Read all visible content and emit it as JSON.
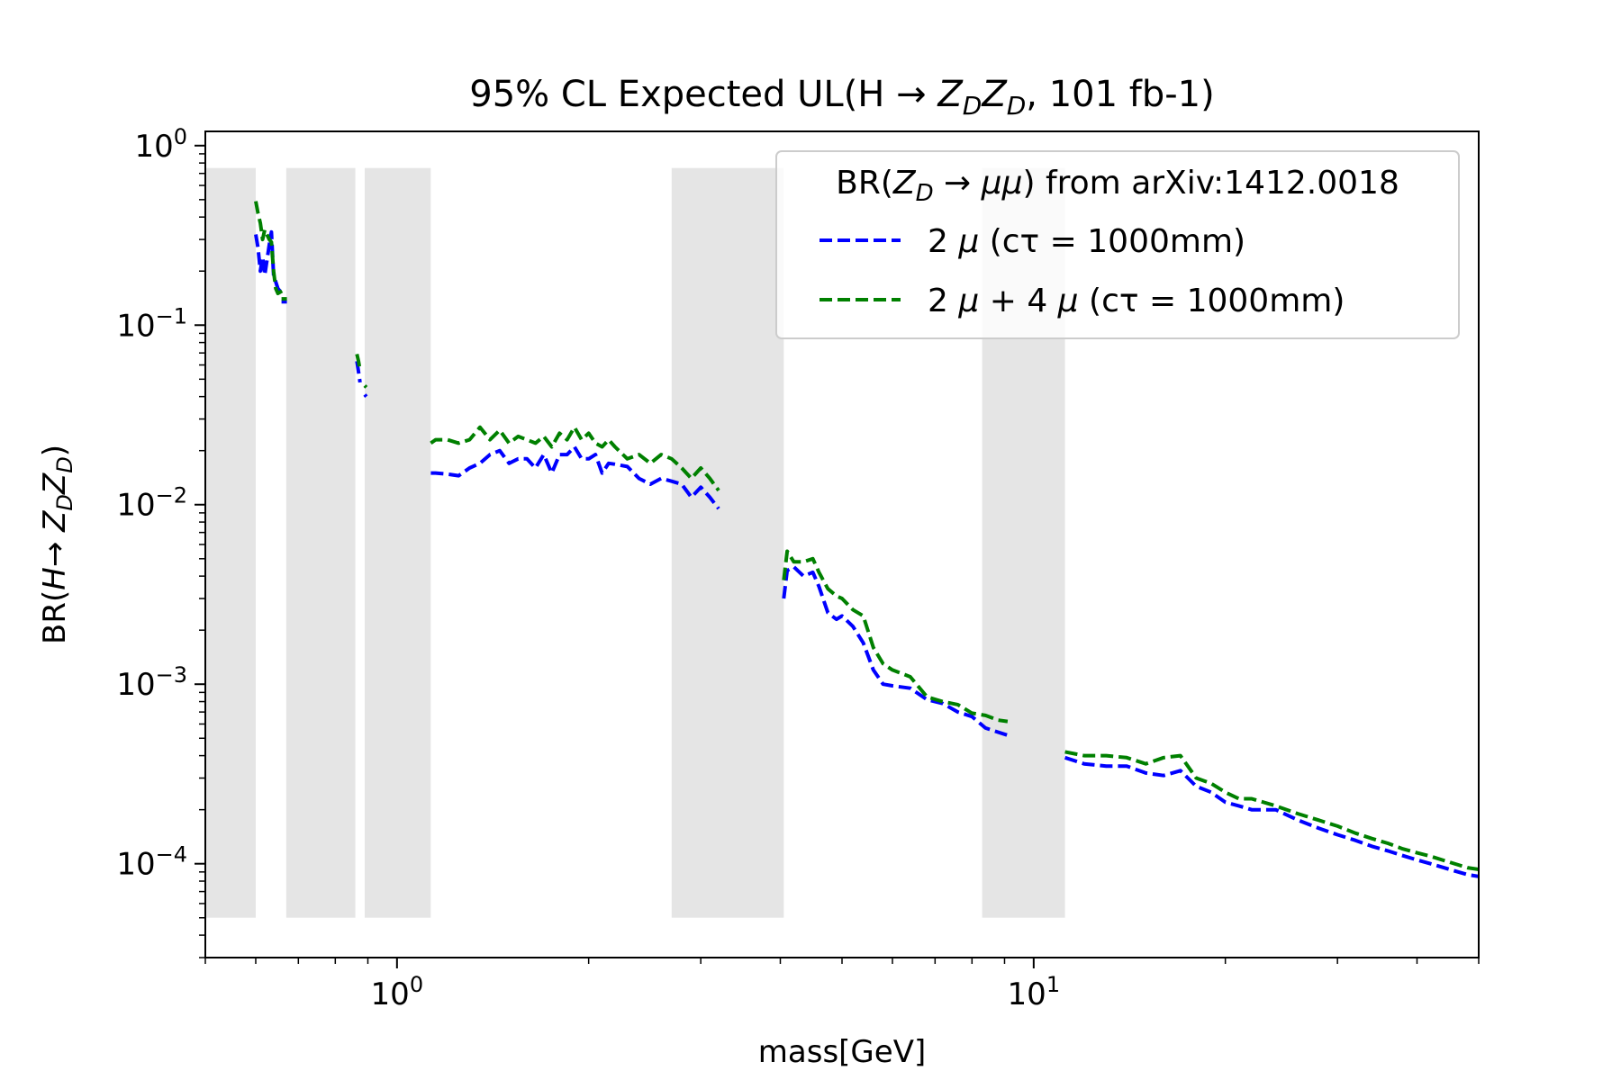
{
  "chart_data": {
    "type": "line",
    "title_prefix": "95% CL Expected UL(H ",
    "title_arrow": "→",
    "title_zd": "Z",
    "title_sub": "D",
    "title_suffix": ", 101 fb-1)",
    "xlabel": "mass[GeV]",
    "ylabel_prefix": "BR(",
    "ylabel_h": "H",
    "ylabel_arrow": "→",
    "ylabel_z": "Z",
    "ylabel_sub": "D",
    "ylabel_suffix": ")",
    "xscale": "log",
    "yscale": "log",
    "xlim": [
      0.5,
      50
    ],
    "ylim": [
      3e-05,
      1.2
    ],
    "x_ticks": [
      {
        "value": 1,
        "base": "10",
        "exp": "0"
      },
      {
        "value": 10,
        "base": "10",
        "exp": "1"
      }
    ],
    "y_ticks": [
      {
        "value": 1,
        "base": "10",
        "exp": "0"
      },
      {
        "value": 0.1,
        "base": "10",
        "exp": "−1"
      },
      {
        "value": 0.01,
        "base": "10",
        "exp": "−2"
      },
      {
        "value": 0.001,
        "base": "10",
        "exp": "−3"
      },
      {
        "value": 0.0001,
        "base": "10",
        "exp": "−4"
      }
    ],
    "grid": false,
    "legend_placement": "top-right",
    "legend": {
      "title_prefix": "BR(",
      "title_z": "Z",
      "title_sub": "D",
      "title_arrow": "→",
      "title_mumu": "μμ",
      "title_suffix": ") from arXiv:1412.0018"
    },
    "excluded_bands": [
      {
        "x": [
          0.5,
          0.6
        ],
        "y": [
          5e-05,
          0.75
        ]
      },
      {
        "x": [
          0.67,
          0.86
        ],
        "y": [
          5e-05,
          0.75
        ]
      },
      {
        "x": [
          0.89,
          1.13
        ],
        "y": [
          5e-05,
          0.75
        ]
      },
      {
        "x": [
          2.7,
          4.05
        ],
        "y": [
          5e-05,
          0.75
        ]
      },
      {
        "x": [
          8.3,
          11.2
        ],
        "y": [
          5e-05,
          0.75
        ]
      }
    ],
    "band_color": "#e5e5e5",
    "series": [
      {
        "name_prefix": "2 ",
        "name_mu": "μ",
        "name_suffix": " (cτ = 1000mm)",
        "color": "#0000ff",
        "segments": [
          [
            [
              0.6,
              0.32
            ],
            [
              0.605,
              0.27
            ],
            [
              0.61,
              0.2
            ],
            [
              0.615,
              0.24
            ],
            [
              0.62,
              0.19
            ],
            [
              0.63,
              0.28
            ],
            [
              0.635,
              0.33
            ],
            [
              0.64,
              0.19
            ],
            [
              0.65,
              0.16
            ],
            [
              0.66,
              0.15
            ]
          ],
          [
            [
              0.665,
              0.135
            ]
          ],
          [
            [
              0.865,
              0.063
            ],
            [
              0.87,
              0.055
            ],
            [
              0.875,
              0.048
            ]
          ],
          [
            [
              0.89,
              0.041
            ],
            [
              0.895,
              0.04
            ]
          ],
          [
            [
              1.13,
              0.015
            ],
            [
              1.15,
              0.015
            ],
            [
              1.2,
              0.0148
            ],
            [
              1.25,
              0.0145
            ],
            [
              1.3,
              0.016
            ],
            [
              1.35,
              0.017
            ],
            [
              1.4,
              0.019
            ],
            [
              1.45,
              0.02
            ],
            [
              1.5,
              0.017
            ],
            [
              1.55,
              0.018
            ],
            [
              1.6,
              0.018
            ],
            [
              1.65,
              0.016
            ],
            [
              1.7,
              0.019
            ],
            [
              1.75,
              0.015
            ],
            [
              1.8,
              0.019
            ],
            [
              1.85,
              0.019
            ],
            [
              1.9,
              0.021
            ],
            [
              1.95,
              0.018
            ],
            [
              2.0,
              0.018
            ],
            [
              2.05,
              0.019
            ],
            [
              2.1,
              0.015
            ],
            [
              2.15,
              0.017
            ],
            [
              2.2,
              0.0168
            ],
            [
              2.3,
              0.0163
            ],
            [
              2.4,
              0.014
            ],
            [
              2.5,
              0.013
            ],
            [
              2.6,
              0.014
            ],
            [
              2.7,
              0.0135
            ],
            [
              2.8,
              0.013
            ],
            [
              2.9,
              0.011
            ],
            [
              3.0,
              0.0125
            ],
            [
              3.1,
              0.011
            ],
            [
              3.2,
              0.0095
            ]
          ],
          [
            [
              4.05,
              0.003
            ],
            [
              4.1,
              0.0043
            ],
            [
              4.2,
              0.0045
            ],
            [
              4.35,
              0.004
            ],
            [
              4.5,
              0.0042
            ],
            [
              4.6,
              0.0035
            ],
            [
              4.75,
              0.0025
            ],
            [
              4.9,
              0.0023
            ],
            [
              5.0,
              0.0024
            ],
            [
              5.2,
              0.0021
            ],
            [
              5.4,
              0.0017
            ],
            [
              5.6,
              0.0012
            ],
            [
              5.8,
              0.001
            ],
            [
              6.0,
              0.00098
            ],
            [
              6.4,
              0.00095
            ],
            [
              6.8,
              0.00082
            ],
            [
              7.2,
              0.00078
            ],
            [
              7.6,
              0.0007
            ],
            [
              8.0,
              0.00066
            ],
            [
              8.4,
              0.00057
            ],
            [
              8.8,
              0.00054
            ],
            [
              9.1,
              0.00052
            ]
          ],
          [
            [
              11.2,
              0.00039
            ],
            [
              12,
              0.00036
            ],
            [
              13,
              0.00035
            ],
            [
              14,
              0.00035
            ],
            [
              15,
              0.00032
            ],
            [
              16,
              0.00031
            ],
            [
              17,
              0.00033
            ],
            [
              18,
              0.00027
            ],
            [
              19,
              0.00025
            ],
            [
              20,
              0.00022
            ],
            [
              21,
              0.00021
            ],
            [
              22,
              0.0002
            ],
            [
              24,
              0.0002
            ],
            [
              26,
              0.000175
            ],
            [
              28,
              0.000158
            ],
            [
              30,
              0.000145
            ],
            [
              32,
              0.000135
            ],
            [
              34,
              0.000125
            ],
            [
              36,
              0.000118
            ],
            [
              38,
              0.000111
            ],
            [
              40,
              0.000105
            ],
            [
              42,
              0.0001
            ],
            [
              45,
              9.3e-05
            ],
            [
              48,
              8.7e-05
            ],
            [
              50,
              8.5e-05
            ]
          ]
        ]
      },
      {
        "name_prefix": "2 ",
        "name_mu": "μ",
        "name_mid": " + 4 ",
        "name_mu2": "μ",
        "name_suffix": " (cτ = 1000mm)",
        "color": "#008000",
        "segments": [
          [
            [
              0.6,
              0.49
            ],
            [
              0.605,
              0.42
            ],
            [
              0.61,
              0.37
            ],
            [
              0.615,
              0.3
            ],
            [
              0.62,
              0.34
            ],
            [
              0.63,
              0.3
            ],
            [
              0.635,
              0.29
            ],
            [
              0.64,
              0.2
            ],
            [
              0.645,
              0.16
            ],
            [
              0.65,
              0.15
            ],
            [
              0.66,
              0.155
            ]
          ],
          [
            [
              0.665,
              0.14
            ]
          ],
          [
            [
              0.865,
              0.069
            ],
            [
              0.87,
              0.063
            ],
            [
              0.875,
              0.056
            ]
          ],
          [
            [
              0.89,
              0.046
            ],
            [
              0.895,
              0.045
            ]
          ],
          [
            [
              1.13,
              0.022
            ],
            [
              1.15,
              0.023
            ],
            [
              1.2,
              0.023
            ],
            [
              1.25,
              0.022
            ],
            [
              1.3,
              0.023
            ],
            [
              1.35,
              0.027
            ],
            [
              1.4,
              0.023
            ],
            [
              1.45,
              0.026
            ],
            [
              1.5,
              0.022
            ],
            [
              1.55,
              0.024
            ],
            [
              1.6,
              0.023
            ],
            [
              1.65,
              0.022
            ],
            [
              1.7,
              0.024
            ],
            [
              1.75,
              0.021
            ],
            [
              1.8,
              0.025
            ],
            [
              1.85,
              0.023
            ],
            [
              1.9,
              0.027
            ],
            [
              1.95,
              0.023
            ],
            [
              2.0,
              0.025
            ],
            [
              2.05,
              0.022
            ],
            [
              2.1,
              0.021
            ],
            [
              2.15,
              0.023
            ],
            [
              2.2,
              0.021
            ],
            [
              2.3,
              0.018
            ],
            [
              2.4,
              0.019
            ],
            [
              2.5,
              0.017
            ],
            [
              2.6,
              0.019
            ],
            [
              2.7,
              0.018
            ],
            [
              2.8,
              0.016
            ],
            [
              2.9,
              0.014
            ],
            [
              3.0,
              0.016
            ],
            [
              3.1,
              0.014
            ],
            [
              3.2,
              0.012
            ]
          ],
          [
            [
              4.05,
              0.0038
            ],
            [
              4.1,
              0.0055
            ],
            [
              4.2,
              0.0048
            ],
            [
              4.35,
              0.0048
            ],
            [
              4.5,
              0.005
            ],
            [
              4.6,
              0.0042
            ],
            [
              4.75,
              0.0034
            ],
            [
              4.9,
              0.0031
            ],
            [
              5.0,
              0.003
            ],
            [
              5.2,
              0.0026
            ],
            [
              5.4,
              0.0024
            ],
            [
              5.6,
              0.0016
            ],
            [
              5.8,
              0.0013
            ],
            [
              6.0,
              0.0012
            ],
            [
              6.4,
              0.0011
            ],
            [
              6.8,
              0.00085
            ],
            [
              7.2,
              0.0008
            ],
            [
              7.6,
              0.00077
            ],
            [
              8.0,
              0.00069
            ],
            [
              8.4,
              0.00067
            ],
            [
              8.8,
              0.00063
            ],
            [
              9.1,
              0.00062
            ]
          ],
          [
            [
              11.2,
              0.00042
            ],
            [
              12,
              0.0004
            ],
            [
              13,
              0.0004
            ],
            [
              14,
              0.00039
            ],
            [
              15,
              0.00036
            ],
            [
              16,
              0.00039
            ],
            [
              17,
              0.0004
            ],
            [
              18,
              0.0003
            ],
            [
              19,
              0.00028
            ],
            [
              20,
              0.00025
            ],
            [
              21,
              0.00023
            ],
            [
              22,
              0.00023
            ],
            [
              24,
              0.00021
            ],
            [
              26,
              0.00019
            ],
            [
              28,
              0.000175
            ],
            [
              30,
              0.000162
            ],
            [
              32,
              0.000148
            ],
            [
              34,
              0.000138
            ],
            [
              36,
              0.00013
            ],
            [
              38,
              0.000121
            ],
            [
              40,
              0.000115
            ],
            [
              42,
              0.00011
            ],
            [
              45,
              0.000102
            ],
            [
              48,
              9.5e-05
            ],
            [
              50,
              9.3e-05
            ]
          ]
        ]
      }
    ]
  }
}
